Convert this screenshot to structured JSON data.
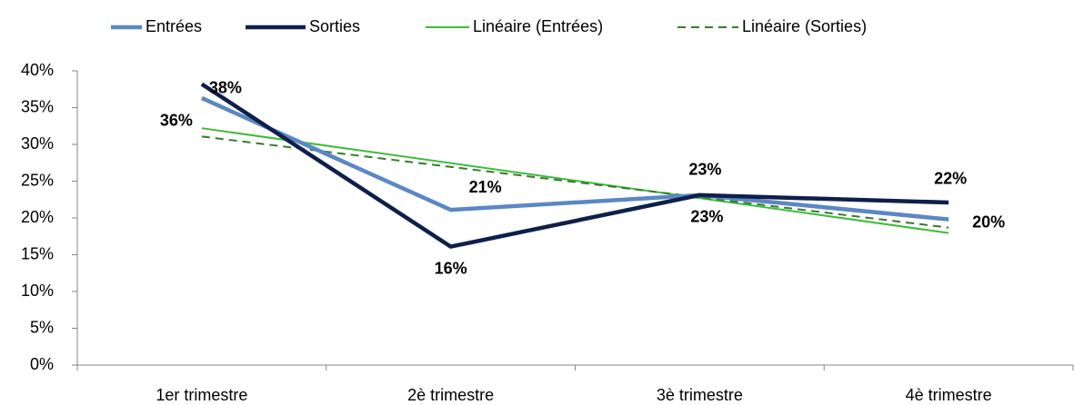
{
  "chart_data": {
    "type": "line",
    "categories": [
      "1er trimestre",
      "2è trimestre",
      "3è trimestre",
      "4è trimestre"
    ],
    "series": [
      {
        "name": "Entrées",
        "color": "#5b87c5",
        "label_color": "#1f3251",
        "values": [
          36.3,
          21.1,
          23.1,
          19.8
        ],
        "value_labels": [
          "36%",
          "21%",
          "23%",
          "20%"
        ]
      },
      {
        "name": "Sorties",
        "color": "#0f1f4b",
        "label_color": "#000000",
        "values": [
          38.2,
          16.1,
          23.1,
          22.1
        ],
        "value_labels": [
          "38%",
          "16%",
          "23%",
          "22%"
        ]
      },
      {
        "name": "Linéaire (Entrées)",
        "color": "#3cbc3c",
        "trendline_of": 0
      },
      {
        "name": "Linéaire (Sorties)",
        "color": "#3a7a2a",
        "trendline_of": 1,
        "dashed": true
      }
    ],
    "ylim": [
      0,
      40
    ],
    "yticks": [
      {
        "value": 0,
        "label": "0%"
      },
      {
        "value": 5,
        "label": "5%"
      },
      {
        "value": 10,
        "label": "10%"
      },
      {
        "value": 15,
        "label": "15%"
      },
      {
        "value": 20,
        "label": "20%"
      },
      {
        "value": 25,
        "label": "25%"
      },
      {
        "value": 30,
        "label": "30%"
      },
      {
        "value": 35,
        "label": "35%"
      },
      {
        "value": 40,
        "label": "40%"
      }
    ],
    "legend": "top"
  }
}
